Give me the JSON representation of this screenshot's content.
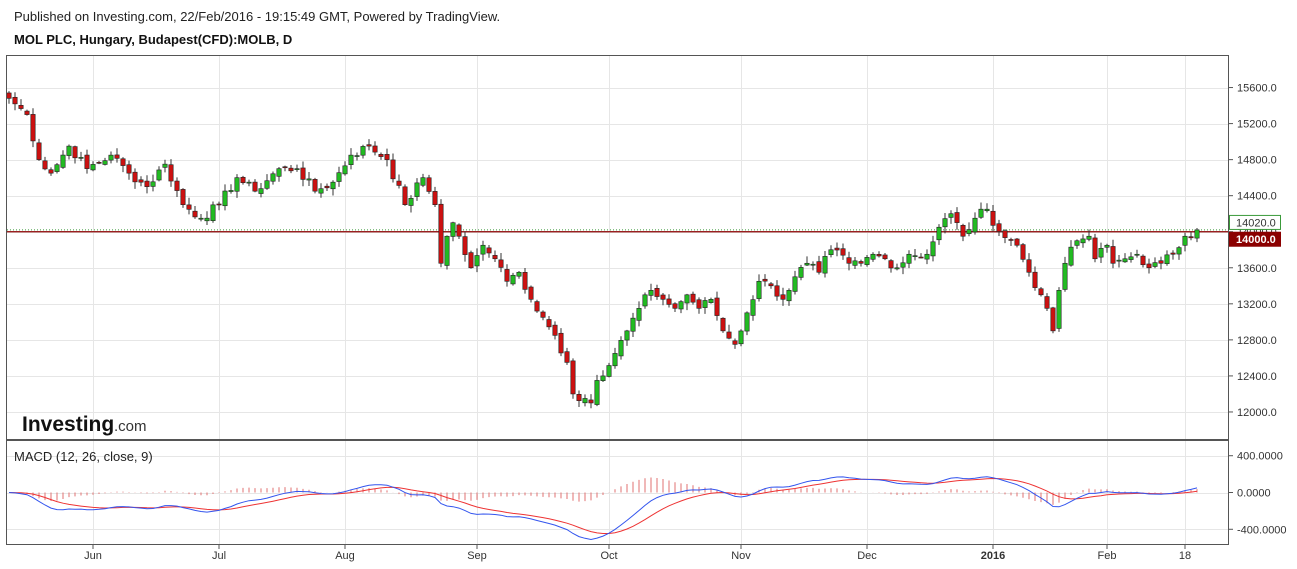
{
  "header": {
    "published": "Published on Investing.com, 22/Feb/2016 - 19:15:49 GMT, Powered by TradingView.",
    "symbol_title": "MOL PLC, Hungary, Budapest(CFD):MOLB, D"
  },
  "logo": {
    "main": "Investing",
    "sub": ".com"
  },
  "colors": {
    "up": "#22bb22",
    "down": "#cc1111",
    "grid": "#e6e6e6",
    "macd": "#3355ee",
    "signal": "#ee3333",
    "hist": "#e07070",
    "price_line": "#8b0000",
    "dotted_line": "#3a9a3a"
  },
  "chart_data": [
    {
      "type": "candlestick",
      "y_ticks": [
        "15600.0",
        "15200.0",
        "14800.0",
        "14400.0",
        "14000.0",
        "13600.0",
        "13200.0",
        "12800.0",
        "12400.0",
        "12000.0"
      ],
      "ylim": [
        11700,
        15950
      ],
      "x_ticks": [
        {
          "label": "Jun",
          "i": 14,
          "bold": false
        },
        {
          "label": "Jul",
          "i": 35,
          "bold": false
        },
        {
          "label": "Aug",
          "i": 56,
          "bold": false
        },
        {
          "label": "Sep",
          "i": 78,
          "bold": false
        },
        {
          "label": "Oct",
          "i": 100,
          "bold": false
        },
        {
          "label": "Nov",
          "i": 122,
          "bold": false
        },
        {
          "label": "Dec",
          "i": 143,
          "bold": false
        },
        {
          "label": "2016",
          "i": 164,
          "bold": true
        },
        {
          "label": "Feb",
          "i": 183,
          "bold": false
        },
        {
          "label": "18",
          "i": 196,
          "bold": false
        }
      ],
      "price_labels": [
        {
          "text": "14020.0",
          "value": 14020,
          "style": "outline"
        },
        {
          "text": "14000.0",
          "value": 14000,
          "style": "filled"
        }
      ],
      "anchors": [
        [
          0,
          15480
        ],
        [
          3,
          15300
        ],
        [
          5,
          14800
        ],
        [
          7,
          14650
        ],
        [
          10,
          14950
        ],
        [
          13,
          14700
        ],
        [
          17,
          14850
        ],
        [
          20,
          14650
        ],
        [
          23,
          14500
        ],
        [
          26,
          14750
        ],
        [
          29,
          14300
        ],
        [
          32,
          14150
        ],
        [
          35,
          14300
        ],
        [
          38,
          14600
        ],
        [
          41,
          14450
        ],
        [
          45,
          14700
        ],
        [
          48,
          14700
        ],
        [
          51,
          14450
        ],
        [
          54,
          14550
        ],
        [
          57,
          14850
        ],
        [
          60,
          14950
        ],
        [
          63,
          14800
        ],
        [
          66,
          14300
        ],
        [
          69,
          14600
        ],
        [
          71,
          14300
        ],
        [
          72,
          13650
        ],
        [
          73,
          13950
        ],
        [
          74,
          14100
        ],
        [
          75,
          13950
        ],
        [
          77,
          13600
        ],
        [
          79,
          13850
        ],
        [
          81,
          13700
        ],
        [
          83,
          13450
        ],
        [
          85,
          13550
        ],
        [
          87,
          13250
        ],
        [
          89,
          13050
        ],
        [
          91,
          12850
        ],
        [
          93,
          12550
        ],
        [
          94,
          12200
        ],
        [
          96,
          12150
        ],
        [
          97,
          12100
        ],
        [
          98,
          12350
        ],
        [
          99,
          12400
        ],
        [
          101,
          12650
        ],
        [
          103,
          12900
        ],
        [
          105,
          13150
        ],
        [
          107,
          13350
        ],
        [
          109,
          13250
        ],
        [
          111,
          13150
        ],
        [
          113,
          13300
        ],
        [
          115,
          13150
        ],
        [
          117,
          13250
        ],
        [
          119,
          12900
        ],
        [
          121,
          12750
        ],
        [
          123,
          13100
        ],
        [
          125,
          13450
        ],
        [
          127,
          13400
        ],
        [
          129,
          13250
        ],
        [
          131,
          13500
        ],
        [
          133,
          13650
        ],
        [
          135,
          13550
        ],
        [
          137,
          13800
        ],
        [
          140,
          13650
        ],
        [
          142,
          13650
        ],
        [
          144,
          13750
        ],
        [
          146,
          13700
        ],
        [
          148,
          13600
        ],
        [
          150,
          13750
        ],
        [
          153,
          13750
        ],
        [
          155,
          14050
        ],
        [
          157,
          14200
        ],
        [
          159,
          13950
        ],
        [
          161,
          14150
        ],
        [
          163,
          14250
        ],
        [
          165,
          14000
        ],
        [
          168,
          13850
        ],
        [
          170,
          13550
        ],
        [
          172,
          13300
        ],
        [
          173,
          13150
        ],
        [
          174,
          12900
        ],
        [
          175,
          13350
        ],
        [
          176,
          13650
        ],
        [
          178,
          13900
        ],
        [
          180,
          13950
        ],
        [
          181,
          13700
        ],
        [
          183,
          13850
        ],
        [
          184,
          13650
        ],
        [
          186,
          13700
        ],
        [
          188,
          13750
        ],
        [
          190,
          13600
        ],
        [
          192,
          13650
        ],
        [
          194,
          13750
        ],
        [
          196,
          13950
        ],
        [
          198,
          14020
        ]
      ],
      "anchors_note": "close prices by trading-day index"
    },
    {
      "type": "line",
      "title": "MACD (12, 26, close, 9)",
      "y_ticks": [
        "400.0000",
        "0.0000",
        "-400.0000"
      ],
      "ylim": [
        -560,
        560
      ],
      "series": [
        {
          "name": "MACD",
          "role": "macd"
        },
        {
          "name": "Signal",
          "role": "signal"
        }
      ]
    }
  ]
}
